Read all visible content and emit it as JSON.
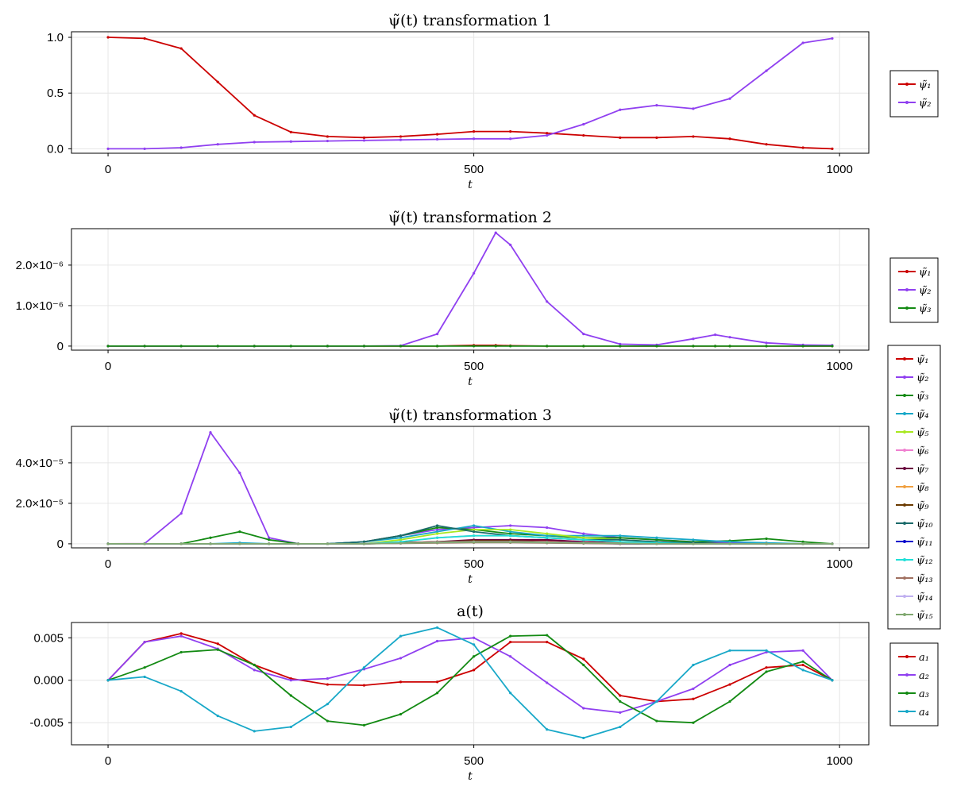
{
  "chart_data": [
    {
      "type": "line",
      "title": "ψ̃(t) transformation 1",
      "xlabel": "t",
      "ylabel": "",
      "xlim": [
        -50,
        1040
      ],
      "ylim": [
        -0.04,
        1.05
      ],
      "xticks": [
        0,
        500,
        1000
      ],
      "xtick_labels": [
        "0",
        "500",
        "1000"
      ],
      "yticks": [
        0,
        0.5,
        1.0
      ],
      "ytick_labels": [
        "0.0",
        "0.5",
        "1.0"
      ],
      "grid": true,
      "legend": "right",
      "x": [
        0,
        50,
        100,
        150,
        200,
        250,
        300,
        350,
        400,
        450,
        500,
        550,
        600,
        650,
        700,
        750,
        800,
        850,
        900,
        950,
        990
      ],
      "series": [
        {
          "name": "ψ̃₁",
          "color": "#cc0000",
          "values": [
            1.0,
            0.99,
            0.9,
            0.6,
            0.3,
            0.15,
            0.11,
            0.1,
            0.11,
            0.13,
            0.155,
            0.155,
            0.14,
            0.12,
            0.1,
            0.1,
            0.11,
            0.09,
            0.04,
            0.01,
            0.0
          ]
        },
        {
          "name": "ψ̃₂",
          "color": "#9040f0",
          "values": [
            0.0,
            0.0,
            0.01,
            0.04,
            0.06,
            0.065,
            0.07,
            0.075,
            0.08,
            0.085,
            0.09,
            0.09,
            0.12,
            0.22,
            0.35,
            0.39,
            0.36,
            0.45,
            0.7,
            0.95,
            0.99
          ]
        }
      ]
    },
    {
      "type": "line",
      "title": "ψ̃(t) transformation 2",
      "xlabel": "t",
      "ylabel": "",
      "xlim": [
        -50,
        1040
      ],
      "ylim": [
        -1e-07,
        2.9e-06
      ],
      "xticks": [
        0,
        500,
        1000
      ],
      "xtick_labels": [
        "0",
        "500",
        "1000"
      ],
      "yticks": [
        0,
        1e-06,
        2e-06
      ],
      "ytick_labels": [
        "0",
        "1.0×10⁻⁶",
        "2.0×10⁻⁶"
      ],
      "grid": true,
      "legend": "right",
      "x": [
        0,
        50,
        100,
        150,
        200,
        250,
        300,
        350,
        400,
        450,
        500,
        530,
        550,
        600,
        650,
        700,
        750,
        800,
        830,
        850,
        900,
        950,
        990
      ],
      "series": [
        {
          "name": "ψ̃₁",
          "color": "#cc0000",
          "values": [
            0,
            0,
            0,
            0,
            0,
            0,
            0,
            0,
            0,
            0,
            2e-08,
            2e-08,
            1e-08,
            0,
            0,
            0,
            0,
            0,
            0,
            0,
            0,
            0,
            0
          ]
        },
        {
          "name": "ψ̃₂",
          "color": "#9040f0",
          "values": [
            0,
            0,
            0,
            0,
            0,
            0,
            0,
            0,
            1e-08,
            3e-07,
            1.8e-06,
            2.8e-06,
            2.5e-06,
            1.1e-06,
            3e-07,
            5e-08,
            3e-08,
            1.8e-07,
            2.8e-07,
            2.2e-07,
            8e-08,
            3e-08,
            2e-08
          ]
        },
        {
          "name": "ψ̃₃",
          "color": "#138a13",
          "values": [
            0,
            0,
            0,
            0,
            0,
            0,
            0,
            0,
            0,
            0,
            0,
            0,
            0,
            0,
            0,
            0,
            0,
            0,
            0,
            0,
            0,
            0,
            0
          ]
        }
      ]
    },
    {
      "type": "line",
      "title": "ψ̃(t) transformation 3",
      "xlabel": "t",
      "ylabel": "",
      "xlim": [
        -50,
        1040
      ],
      "ylim": [
        -2e-06,
        5.8e-05
      ],
      "xticks": [
        0,
        500,
        1000
      ],
      "xtick_labels": [
        "0",
        "500",
        "1000"
      ],
      "yticks": [
        0,
        2e-05,
        4e-05
      ],
      "ytick_labels": [
        "0",
        "2.0×10⁻⁵",
        "4.0×10⁻⁵"
      ],
      "grid": true,
      "legend": "right",
      "x": [
        0,
        50,
        100,
        140,
        180,
        220,
        260,
        300,
        350,
        400,
        450,
        500,
        550,
        600,
        650,
        700,
        750,
        800,
        850,
        900,
        950,
        990
      ],
      "series": [
        {
          "name": "ψ̃₁",
          "color": "#cc0000",
          "values": [
            0,
            0,
            0,
            0,
            0,
            0,
            0,
            0,
            0,
            5e-07,
            1e-06,
            1.5e-06,
            2e-06,
            1.8e-06,
            1e-06,
            6e-07,
            3e-07,
            2e-07,
            1e-07,
            0,
            0,
            0
          ]
        },
        {
          "name": "ψ̃₂",
          "color": "#9040f0",
          "values": [
            0,
            1e-07,
            1.5e-05,
            5.5e-05,
            3.5e-05,
            3e-06,
            0,
            0,
            1e-06,
            4e-06,
            7e-06,
            8e-06,
            9e-06,
            8e-06,
            5e-06,
            3e-06,
            2e-06,
            1e-06,
            5e-07,
            2e-07,
            0,
            0
          ]
        },
        {
          "name": "ψ̃₃",
          "color": "#138a13",
          "values": [
            0,
            0,
            0,
            3e-06,
            6e-06,
            2e-06,
            0,
            0,
            1e-06,
            4e-06,
            8e-06,
            7e-06,
            5e-06,
            4e-06,
            3e-06,
            3e-06,
            2e-06,
            1e-06,
            1.5e-06,
            2.5e-06,
            1e-06,
            0
          ]
        },
        {
          "name": "ψ̃₄",
          "color": "#18a8c8",
          "values": [
            0,
            0,
            0,
            0,
            5e-07,
            0,
            0,
            0,
            1e-06,
            3e-06,
            6e-06,
            9e-06,
            6e-06,
            4e-06,
            4e-06,
            4e-06,
            3e-06,
            2e-06,
            1e-06,
            5e-07,
            0,
            0
          ]
        },
        {
          "name": "ψ̃₅",
          "color": "#a8e820",
          "values": [
            0,
            0,
            0,
            0,
            0,
            0,
            0,
            0,
            0,
            2e-06,
            5e-06,
            7e-06,
            7e-06,
            5e-06,
            3e-06,
            2e-06,
            1e-06,
            5e-07,
            0,
            0,
            0,
            0
          ]
        },
        {
          "name": "ψ̃₆",
          "color": "#f080d0",
          "values": [
            0,
            0,
            0,
            0,
            0,
            0,
            0,
            0,
            0,
            1e-06,
            3e-06,
            4e-06,
            4e-06,
            3e-06,
            2e-06,
            1e-06,
            5e-07,
            0,
            0,
            0,
            0,
            0
          ]
        },
        {
          "name": "ψ̃₇",
          "color": "#6a0040",
          "values": [
            0,
            0,
            0,
            0,
            0,
            0,
            0,
            0,
            0,
            5e-07,
            1e-06,
            2e-06,
            2e-06,
            2e-06,
            1e-06,
            5e-07,
            0,
            0,
            0,
            0,
            0,
            0
          ]
        },
        {
          "name": "ψ̃₈",
          "color": "#f0a040",
          "values": [
            0,
            0,
            0,
            0,
            0,
            0,
            0,
            0,
            0,
            3e-07,
            8e-07,
            1e-06,
            1e-06,
            8e-07,
            5e-07,
            3e-07,
            0,
            0,
            0,
            0,
            0,
            0
          ]
        },
        {
          "name": "ψ̃₉",
          "color": "#6a3a00",
          "values": [
            0,
            0,
            0,
            0,
            0,
            0,
            0,
            0,
            0,
            5e-07,
            1e-06,
            1.5e-06,
            1.5e-06,
            1e-06,
            5e-07,
            0,
            0,
            0,
            0,
            0,
            0,
            0
          ]
        },
        {
          "name": "ψ̃₁₀",
          "color": "#1a6a6a",
          "values": [
            0,
            0,
            0,
            0,
            0,
            0,
            0,
            0,
            1e-06,
            4e-06,
            9e-06,
            6e-06,
            4e-06,
            3e-06,
            2e-06,
            2e-06,
            1e-06,
            5e-07,
            0,
            0,
            0,
            0
          ]
        },
        {
          "name": "ψ̃₁₁",
          "color": "#0000cc",
          "values": [
            0,
            0,
            0,
            0,
            0,
            0,
            0,
            0,
            0,
            3e-07,
            6e-07,
            8e-07,
            8e-07,
            5e-07,
            3e-07,
            0,
            0,
            0,
            0,
            0,
            0,
            0
          ]
        },
        {
          "name": "ψ̃₁₂",
          "color": "#20e0d8",
          "values": [
            0,
            0,
            0,
            0,
            0,
            0,
            0,
            0,
            0,
            1e-06,
            3e-06,
            4e-06,
            4e-06,
            3e-06,
            2e-06,
            1e-06,
            5e-07,
            0,
            0,
            0,
            0,
            0
          ]
        },
        {
          "name": "ψ̃₁₃",
          "color": "#a07060",
          "values": [
            0,
            0,
            0,
            0,
            0,
            0,
            0,
            0,
            0,
            2e-07,
            4e-07,
            6e-07,
            6e-07,
            4e-07,
            2e-07,
            0,
            0,
            0,
            0,
            0,
            0,
            0
          ]
        },
        {
          "name": "ψ̃₁₄",
          "color": "#c0b0f0",
          "values": [
            0,
            0,
            0,
            0,
            0,
            0,
            0,
            0,
            0,
            3e-07,
            8e-07,
            1e-06,
            1e-06,
            8e-07,
            5e-07,
            2e-07,
            0,
            0,
            0,
            0,
            0,
            0
          ]
        },
        {
          "name": "ψ̃₁₅",
          "color": "#80a870",
          "values": [
            0,
            0,
            0,
            0,
            0,
            0,
            0,
            0,
            0,
            3e-07,
            6e-07,
            8e-07,
            8e-07,
            6e-07,
            4e-07,
            2e-07,
            0,
            0,
            0,
            0,
            0,
            0
          ]
        }
      ]
    },
    {
      "type": "line",
      "title": "a(t)",
      "xlabel": "t",
      "ylabel": "",
      "xlim": [
        -50,
        1040
      ],
      "ylim": [
        -0.0076,
        0.0068
      ],
      "xticks": [
        0,
        500,
        1000
      ],
      "xtick_labels": [
        "0",
        "500",
        "1000"
      ],
      "yticks": [
        -0.005,
        0.0,
        0.005
      ],
      "ytick_labels": [
        "-0.005",
        "0.000",
        "0.005"
      ],
      "grid": true,
      "legend": "right",
      "x": [
        0,
        50,
        100,
        150,
        200,
        250,
        300,
        350,
        400,
        450,
        500,
        550,
        600,
        650,
        700,
        750,
        800,
        850,
        900,
        950,
        990
      ],
      "series": [
        {
          "name": "a₁",
          "color": "#cc0000",
          "values": [
            0,
            0.0045,
            0.0055,
            0.0043,
            0.0018,
            0.0002,
            -0.0005,
            -0.0006,
            -0.0002,
            -0.0002,
            0.0012,
            0.0045,
            0.0045,
            0.0025,
            -0.0018,
            -0.0025,
            -0.0022,
            -0.0005,
            0.0015,
            0.0018,
            0
          ]
        },
        {
          "name": "a₂",
          "color": "#9040f0",
          "values": [
            0,
            0.0045,
            0.0052,
            0.0037,
            0.0012,
            0.0,
            0.0002,
            0.0013,
            0.0026,
            0.0046,
            0.005,
            0.0028,
            -0.0003,
            -0.0033,
            -0.0038,
            -0.0025,
            -0.001,
            0.0018,
            0.0033,
            0.0035,
            0
          ]
        },
        {
          "name": "a₃",
          "color": "#138a13",
          "values": [
            0,
            0.0015,
            0.0033,
            0.0036,
            0.0018,
            -0.0018,
            -0.0048,
            -0.0053,
            -0.004,
            -0.0015,
            0.0028,
            0.0052,
            0.0053,
            0.0018,
            -0.0025,
            -0.0048,
            -0.005,
            -0.0025,
            0.001,
            0.0022,
            0
          ]
        },
        {
          "name": "a₄",
          "color": "#18a8c8",
          "values": [
            0,
            0.0004,
            -0.0013,
            -0.0042,
            -0.006,
            -0.0055,
            -0.0028,
            0.0015,
            0.0052,
            0.0062,
            0.0042,
            -0.0015,
            -0.0058,
            -0.0068,
            -0.0055,
            -0.0025,
            0.0018,
            0.0035,
            0.0035,
            0.0012,
            0
          ]
        }
      ]
    }
  ]
}
